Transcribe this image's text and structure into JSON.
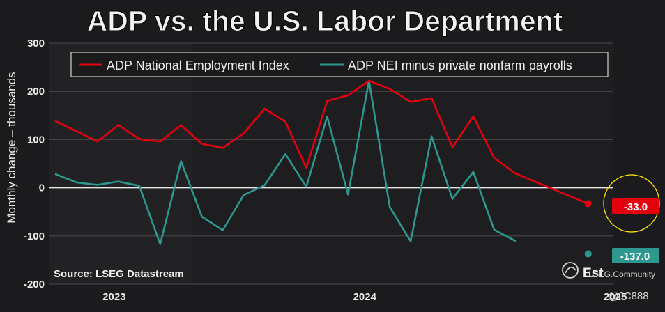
{
  "chart_data": {
    "type": "line",
    "title": "ADP vs. the U.S. Labor Department",
    "ylabel": "Monthly change – thousands",
    "xlabel": "",
    "ylim": [
      -200,
      300
    ],
    "yticks": [
      "300",
      "200",
      "100",
      "0",
      "-100",
      "-200"
    ],
    "ytick_values": [
      300,
      200,
      100,
      0,
      -100,
      -200
    ],
    "xtick_labels": [
      "2023",
      "2024",
      "2025"
    ],
    "xtick_index": [
      2.8,
      14.8,
      26.8
    ],
    "grid": true,
    "legend_position": "top",
    "series": [
      {
        "name": "ADP National Employment Index",
        "color": "#e3000f",
        "values": [
          138,
          117,
          96,
          130,
          101,
          96,
          130,
          91,
          83,
          113,
          164,
          137,
          41,
          180,
          192,
          222,
          205,
          178,
          186,
          84,
          148,
          62,
          30
        ]
      },
      {
        "name": "ADP NEI minus private nonfarm payrolls",
        "color": "#2e9890",
        "values": [
          28,
          11,
          6,
          13,
          4,
          -117,
          55,
          -60,
          -88,
          -15,
          5,
          70,
          2,
          148,
          -14,
          222,
          -40,
          -111,
          107,
          -23,
          33,
          -87,
          -110
        ]
      }
    ],
    "estimates": [
      {
        "series": "ADP National Employment Index",
        "value": -33.0,
        "label": "-33.0",
        "color": "#e3000f"
      },
      {
        "series": "ADP NEI minus private nonfarm payrolls",
        "value": -137.0,
        "label": "-137.0",
        "color": "#2e9890"
      }
    ],
    "estimate_index": 25.5,
    "estimate_label": "Est",
    "source": "Source: LSEG Datastream"
  },
  "watermark": {
    "site": "LSEG.Community",
    "handle": "@JC888"
  },
  "colors": {
    "background": "#1b1b1d",
    "grid": "#4a4a4d",
    "zero_line": "#e6e6e6",
    "text": "#ececec",
    "highlight_circle": "#ffe600"
  }
}
